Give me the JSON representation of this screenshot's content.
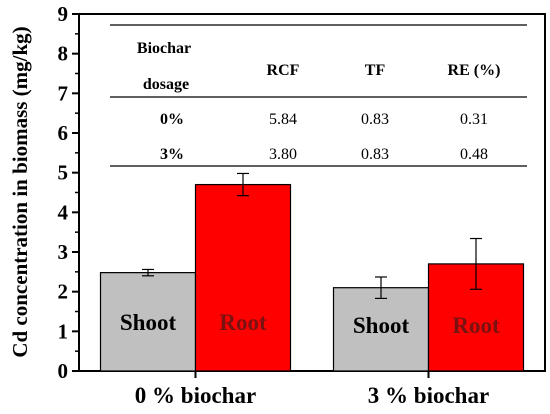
{
  "chart_data": {
    "type": "bar",
    "categories": [
      "0 % biochar",
      "3 % biochar"
    ],
    "series": [
      {
        "name": "Shoot",
        "values": [
          2.48,
          2.1
        ],
        "errors": [
          0.08,
          0.27
        ],
        "color": "#c0c0c0",
        "label_color": "#000000"
      },
      {
        "name": "Root",
        "values": [
          4.7,
          2.7
        ],
        "errors": [
          0.28,
          0.64
        ],
        "color": "#ff0000",
        "label_color": "#7a1212"
      }
    ],
    "ylabel": "Cd concentration in biomass (mg/kg)",
    "xlabel": "",
    "ylim": [
      0,
      9
    ],
    "yticks": [
      "0",
      "1",
      "2",
      "3",
      "4",
      "5",
      "6",
      "7",
      "8",
      "9"
    ],
    "grid": false,
    "legend": "none"
  },
  "table": {
    "header": {
      "col1_line1": "Biochar",
      "col1_line2": "dosage",
      "rcf": "RCF",
      "tf": "TF",
      "re": "RE (%)"
    },
    "rows": [
      {
        "dosage": "0%",
        "rcf": "5.84",
        "tf": "0.83",
        "re": "0.31"
      },
      {
        "dosage": "3%",
        "rcf": "3.80",
        "tf": "0.83",
        "re": "0.48"
      }
    ]
  }
}
